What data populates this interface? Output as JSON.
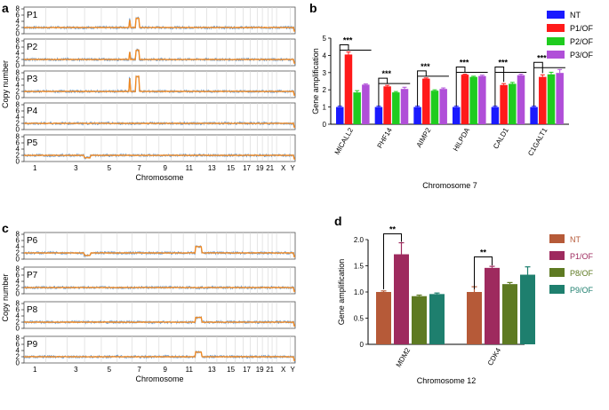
{
  "panels": {
    "a": "a",
    "b": "b",
    "c": "c",
    "d": "d"
  },
  "chart_data": [
    {
      "id": "a",
      "type": "line",
      "ylabel": "Copy number",
      "xlabel": "Chromosome",
      "chromosome_ticks": [
        "1",
        "3",
        "5",
        "7",
        "9",
        "11",
        "13",
        "15",
        "17",
        "19",
        "21",
        "X",
        "Y"
      ],
      "y_ticks": [
        "0",
        "2",
        "4",
        "6",
        "8"
      ],
      "ylim": [
        0,
        8
      ],
      "rows": [
        {
          "name": "P1",
          "amplified_segments": [
            {
              "chromosome": "6-7",
              "peak_copy_number": [
                4.5,
                5
              ]
            }
          ]
        },
        {
          "name": "P2",
          "amplified_segments": [
            {
              "chromosome": "6-7",
              "peak_copy_number": [
                4.5,
                5
              ]
            }
          ]
        },
        {
          "name": "P3",
          "amplified_segments": [
            {
              "chromosome": "6-7",
              "peak_copy_number": [
                6.2,
                6.8
              ]
            }
          ]
        },
        {
          "name": "P4",
          "amplified_segments": []
        },
        {
          "name": "P5",
          "amplified_segments": []
        }
      ],
      "series_colors": {
        "raw": "#4a86c8",
        "segment": "#f08a24"
      }
    },
    {
      "id": "b",
      "type": "bar",
      "xlabel": "Chromosome 7",
      "ylabel": "Gene amplification",
      "ylim": [
        0,
        5
      ],
      "y_ticks": [
        "0",
        "1",
        "2",
        "3",
        "4",
        "5"
      ],
      "categories": [
        "MICALL2",
        "PHF14",
        "AIMP2",
        "HILPDA",
        "CALD1",
        "C1GALT1"
      ],
      "series": [
        {
          "name": "NT",
          "color": "#1a1aff",
          "values": [
            1.0,
            1.0,
            1.0,
            1.0,
            1.0,
            1.0
          ],
          "errors": [
            0.05,
            0.05,
            0.05,
            0.05,
            0.05,
            0.05
          ]
        },
        {
          "name": "P1/OF",
          "color": "#ff1a1a",
          "values": [
            4.05,
            2.2,
            2.65,
            2.88,
            2.28,
            2.75
          ],
          "errors": [
            0.15,
            0.06,
            0.04,
            0.03,
            0.08,
            0.12
          ]
        },
        {
          "name": "P2/OF",
          "color": "#1fcc1f",
          "values": [
            1.85,
            1.85,
            1.95,
            2.75,
            2.35,
            2.9
          ],
          "errors": [
            0.1,
            0.05,
            0.05,
            0.04,
            0.08,
            0.12
          ]
        },
        {
          "name": "P3/OF",
          "color": "#b04fd8",
          "values": [
            2.3,
            2.05,
            2.05,
            2.8,
            2.85,
            2.98
          ],
          "errors": [
            0.04,
            0.1,
            0.06,
            0.05,
            0.06,
            0.2
          ]
        }
      ],
      "significance": [
        "***",
        "***",
        "***",
        "***",
        "***",
        "***"
      ]
    },
    {
      "id": "c",
      "type": "line",
      "ylabel": "Copy number",
      "xlabel": "Chromosome",
      "chromosome_ticks": [
        "1",
        "3",
        "5",
        "7",
        "9",
        "11",
        "13",
        "15",
        "17",
        "19",
        "21",
        "X",
        "Y"
      ],
      "y_ticks": [
        "0",
        "2",
        "4",
        "6",
        "8"
      ],
      "ylim": [
        0,
        8
      ],
      "rows": [
        {
          "name": "P6",
          "amplified_segments": [
            {
              "chromosome": "12",
              "peak_copy_number": [
                4,
                5
              ]
            }
          ]
        },
        {
          "name": "P7",
          "amplified_segments": []
        },
        {
          "name": "P8",
          "amplified_segments": [
            {
              "chromosome": "12",
              "peak_copy_number": [
                3.5
              ]
            }
          ]
        },
        {
          "name": "P9",
          "amplified_segments": [
            {
              "chromosome": "12",
              "peak_copy_number": [
                3.5
              ]
            }
          ]
        }
      ],
      "series_colors": {
        "raw": "#4a86c8",
        "segment": "#f08a24"
      }
    },
    {
      "id": "d",
      "type": "bar",
      "xlabel": "Chromosome 12",
      "ylabel": "Gene amplification",
      "ylim": [
        0,
        2.0
      ],
      "y_ticks": [
        "0",
        "0.5",
        "1.0",
        "1.5",
        "2.0"
      ],
      "categories": [
        "MDM2",
        "CDK4"
      ],
      "series": [
        {
          "name": "NT",
          "color": "#b65a38",
          "values": [
            1.0,
            1.0
          ],
          "errors": [
            0.02,
            0.1
          ]
        },
        {
          "name": "P1/OF",
          "color": "#9e2a5e",
          "values": [
            1.72,
            1.46
          ],
          "errors": [
            0.22,
            0.03
          ]
        },
        {
          "name": "P8/OF",
          "color": "#5e7a22",
          "values": [
            0.92,
            1.15
          ],
          "errors": [
            0.02,
            0.03
          ]
        },
        {
          "name": "P9/OF",
          "color": "#1e7f6e",
          "values": [
            0.96,
            1.33
          ],
          "errors": [
            0.02,
            0.15
          ]
        }
      ],
      "significance": [
        "**",
        "**"
      ]
    }
  ]
}
